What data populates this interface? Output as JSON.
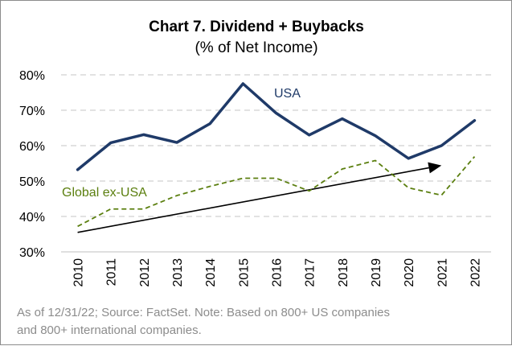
{
  "chart_data": {
    "type": "line",
    "title": "Chart 7. Dividend + Buybacks",
    "subtitle": "(% of Net Income)",
    "x": [
      "2010",
      "2011",
      "2012",
      "2013",
      "2014",
      "2015",
      "2016",
      "2017",
      "2018",
      "2019",
      "2020",
      "2021",
      "2022"
    ],
    "ylim": [
      30,
      80
    ],
    "yticks": [
      30,
      40,
      50,
      60,
      70,
      80
    ],
    "ytick_labels": [
      "30%",
      "40%",
      "50%",
      "60%",
      "70%",
      "80%"
    ],
    "grid": true,
    "series": [
      {
        "name": "USA",
        "color": "#1f3a68",
        "style": "solid",
        "values": [
          53.2,
          60.8,
          63.1,
          60.9,
          66.2,
          77.5,
          69.2,
          63.0,
          67.6,
          62.8,
          56.4,
          60.0,
          67.1
        ]
      },
      {
        "name": "Global ex-USA",
        "color": "#5b7f0f",
        "style": "dashed",
        "values": [
          37.2,
          42.1,
          42.1,
          45.9,
          48.5,
          50.8,
          50.8,
          47.2,
          53.4,
          55.8,
          48.1,
          46.0,
          56.9
        ]
      }
    ],
    "trend_arrow": {
      "from": [
        "2010",
        35.5
      ],
      "to": [
        "2021",
        54.4
      ],
      "color": "#000000"
    },
    "footnote": "As of 12/31/22; Source: FactSet. Note: Based on 800+ US companies and 800+ international companies."
  }
}
